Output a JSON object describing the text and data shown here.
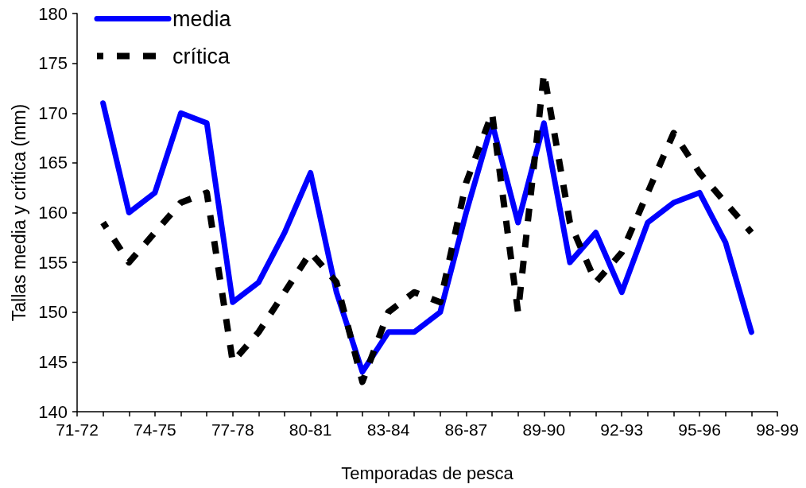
{
  "chart_data": {
    "type": "line",
    "xlabel": "Temporadas de pesca",
    "ylabel": "Tallas media y crítica (mm)",
    "categories": [
      "71-72",
      null,
      null,
      "74-75",
      null,
      null,
      "77-78",
      null,
      null,
      "80-81",
      null,
      null,
      "83-84",
      null,
      null,
      "86-87",
      null,
      null,
      "89-90",
      null,
      null,
      "92-93",
      null,
      null,
      "95-96",
      null,
      null,
      "98-99"
    ],
    "series": [
      {
        "name": "media",
        "color": "#0000ff",
        "line_style": "solid",
        "values": [
          null,
          171,
          160,
          162,
          170,
          169,
          151,
          153,
          158,
          164,
          152,
          144,
          148,
          148,
          150,
          160,
          169,
          159,
          169,
          155,
          158,
          152,
          159,
          161,
          162,
          157,
          148,
          null
        ]
      },
      {
        "name": "crítica",
        "color": "#000000",
        "line_style": "dashed",
        "values": [
          null,
          159,
          155,
          158,
          161,
          162,
          145,
          148,
          152,
          156,
          153,
          143,
          150,
          152,
          151,
          163,
          170,
          150,
          174,
          159,
          153,
          156,
          162,
          168,
          164,
          161,
          158,
          null
        ]
      }
    ],
    "ylim": [
      140,
      180
    ],
    "yticks": [
      140,
      145,
      150,
      155,
      160,
      165,
      170,
      175,
      180
    ],
    "grid": false,
    "legend": "top left",
    "marker": "none"
  }
}
